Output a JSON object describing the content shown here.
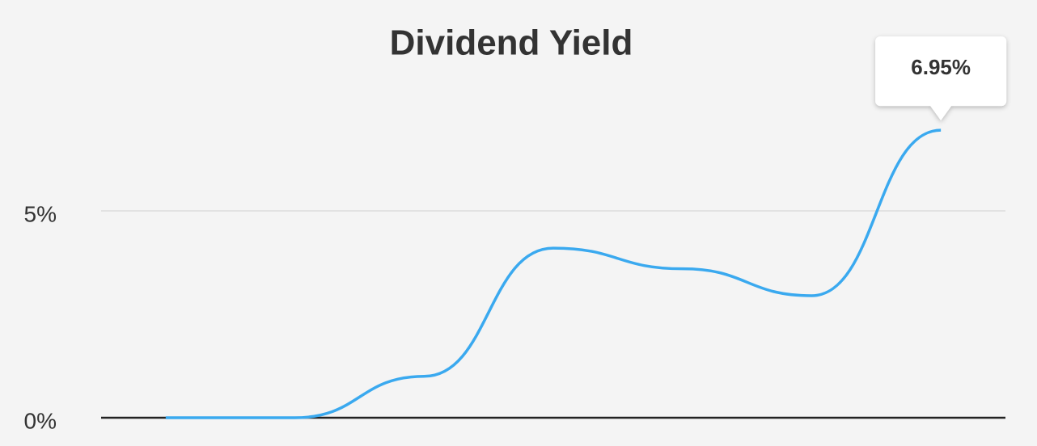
{
  "chart_data": {
    "type": "line",
    "title": "Dividend Yield",
    "categories": [
      null,
      null,
      null,
      null,
      null,
      null,
      null
    ],
    "values": [
      0,
      0,
      1.0,
      4.1,
      3.6,
      2.95,
      6.95
    ],
    "value_labels": [
      null,
      null,
      null,
      null,
      null,
      null,
      "6.95%"
    ],
    "color": "#3aa9ef",
    "ylim": [
      0,
      7.5
    ],
    "yticks": [
      {
        "value": 0,
        "label": "0%"
      },
      {
        "value": 5,
        "label": "5%"
      }
    ],
    "grid": true
  }
}
